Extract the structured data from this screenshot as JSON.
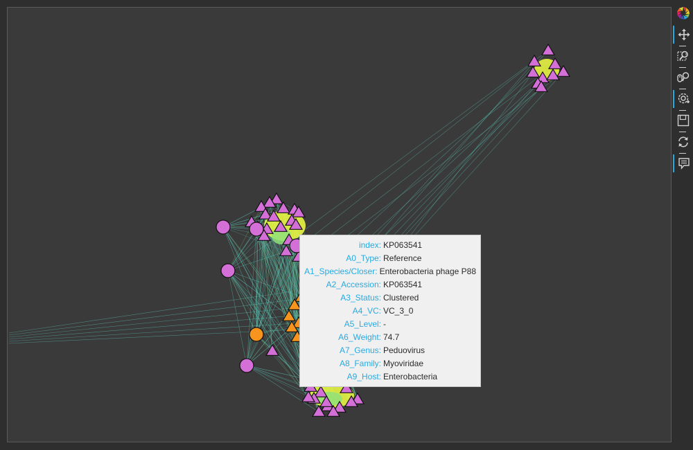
{
  "colors": {
    "background": "#3a3a3a",
    "edge": "#5fd3c3",
    "edge_green": "#8fe07a",
    "reference_node": "#d46fd8",
    "cluster_node": "#f7941d",
    "cluster_highlight": "#e8f542",
    "node_outline": "#111111",
    "tooltip_key": "#26aae1"
  },
  "node_shapes": {
    "triangle": "triangle-marker",
    "circle": "circle-marker"
  },
  "toolbar": {
    "items": [
      {
        "name": "bokeh-logo",
        "icon": "bokeh-logo-icon"
      },
      {
        "name": "pan-tool",
        "icon": "pan-icon",
        "active": true
      },
      {
        "name": "box-zoom-tool",
        "icon": "box-zoom-icon",
        "active": false
      },
      {
        "name": "wheel-zoom-tool",
        "icon": "wheel-zoom-icon",
        "active": false
      },
      {
        "name": "tap-tool",
        "icon": "tap-icon",
        "active": true
      },
      {
        "name": "save-tool",
        "icon": "save-icon",
        "active": false
      },
      {
        "name": "reset-tool",
        "icon": "reset-icon",
        "active": false
      },
      {
        "name": "hover-tool",
        "icon": "hover-icon",
        "active": true
      }
    ]
  },
  "tooltip": {
    "rows": [
      {
        "key": "index:",
        "value": "KP063541"
      },
      {
        "key": "A0_Type:",
        "value": "Reference"
      },
      {
        "key": "A1_Species/Closer:",
        "value": "Enterobacteria phage P88"
      },
      {
        "key": "A2_Accession:",
        "value": "KP063541"
      },
      {
        "key": "A3_Status:",
        "value": "Clustered"
      },
      {
        "key": "A4_VC:",
        "value": "VC_3_0"
      },
      {
        "key": "A5_Level:",
        "value": "-"
      },
      {
        "key": "A6_Weight:",
        "value": "74.7"
      },
      {
        "key": "A7_Genus:",
        "value": "Peduovirus"
      },
      {
        "key": "A8_Family:",
        "value": "Myoviridae"
      },
      {
        "key": "A9_Host:",
        "value": "Enterobacteria"
      }
    ]
  }
}
